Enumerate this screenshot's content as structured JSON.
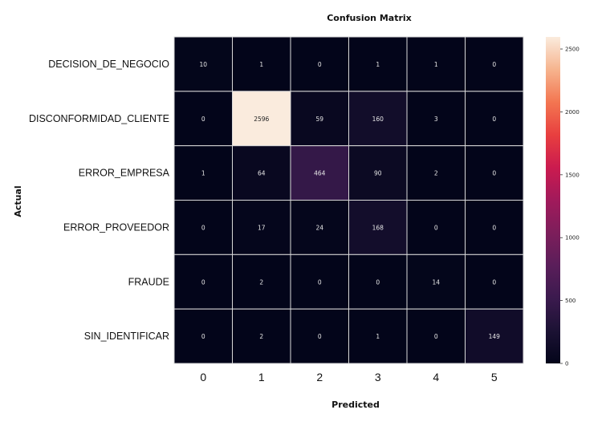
{
  "chart_data": {
    "type": "heatmap",
    "title": "Confusion Matrix",
    "xlabel": "Predicted",
    "ylabel": "Actual",
    "row_labels": [
      "DECISION_DE_NEGOCIO",
      "DISCONFORMIDAD_CLIENTE",
      "ERROR_EMPRESA",
      "ERROR_PROVEEDOR",
      "FRAUDE",
      "SIN_IDENTIFICAR"
    ],
    "col_labels": [
      "0",
      "1",
      "2",
      "3",
      "4",
      "5"
    ],
    "values": [
      [
        10,
        1,
        0,
        1,
        1,
        0
      ],
      [
        0,
        2596,
        59,
        160,
        3,
        0
      ],
      [
        1,
        64,
        464,
        90,
        2,
        0
      ],
      [
        0,
        17,
        24,
        168,
        0,
        0
      ],
      [
        0,
        2,
        0,
        0,
        14,
        0
      ],
      [
        0,
        2,
        0,
        1,
        0,
        149
      ]
    ],
    "colorbar": {
      "range": [
        0,
        2596
      ],
      "ticks": [
        0,
        500,
        1000,
        1500,
        2000,
        2500
      ]
    },
    "colormap": "rocket",
    "grid": true
  }
}
